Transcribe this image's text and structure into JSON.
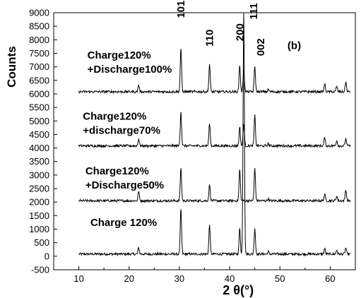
{
  "chart_data": {
    "type": "line",
    "xlabel": "2 θ(°)",
    "ylabel": "Counts",
    "xlim": [
      5,
      65
    ],
    "ylim": [
      -500,
      9000
    ],
    "xticks": [
      10,
      20,
      30,
      40,
      50,
      60
    ],
    "yticks": [
      -500,
      0,
      500,
      1000,
      1500,
      2000,
      2500,
      3000,
      3500,
      4000,
      4500,
      5000,
      5500,
      6000,
      6500,
      7000,
      7500,
      8000,
      8500,
      9000
    ],
    "panel_label": "(b)",
    "peak_labels": [
      {
        "text": "101",
        "x": 30.3,
        "y": 8800
      },
      {
        "text": "110",
        "x": 36.0,
        "y": 7750
      },
      {
        "text": "200",
        "x": 42.0,
        "y": 7950
      },
      {
        "text": "111",
        "x": 44.8,
        "y": 8750
      },
      {
        "text": "002",
        "x": 46.2,
        "y": 7400
      }
    ],
    "series": [
      {
        "name": "Charge 120%",
        "label_lines": [
          "Charge 120%"
        ],
        "label_x": 12.3,
        "label_y": 1120,
        "baseline": 80,
        "peaks": [
          {
            "x": 21.9,
            "h": 230
          },
          {
            "x": 30.3,
            "h": 1650
          },
          {
            "x": 36.0,
            "h": 1080
          },
          {
            "x": 42.0,
            "h": 930
          },
          {
            "x": 42.8,
            "h": 8900
          },
          {
            "x": 45.0,
            "h": 950
          },
          {
            "x": 47.7,
            "h": 90
          },
          {
            "x": 58.9,
            "h": 200
          },
          {
            "x": 61.3,
            "h": 150
          },
          {
            "x": 63.1,
            "h": 230
          }
        ]
      },
      {
        "name": "Charge120% +Discharge50%",
        "label_lines": [
          "Charge120%",
          "+Discharge50%"
        ],
        "label_x": 11.3,
        "label_y": 3020,
        "baseline": 2050,
        "peaks": [
          {
            "x": 21.9,
            "h": 350
          },
          {
            "x": 30.3,
            "h": 1200
          },
          {
            "x": 36.0,
            "h": 600
          },
          {
            "x": 42.0,
            "h": 1150
          },
          {
            "x": 45.0,
            "h": 1200
          },
          {
            "x": 47.7,
            "h": 80
          },
          {
            "x": 58.9,
            "h": 230
          },
          {
            "x": 61.3,
            "h": 170
          },
          {
            "x": 63.1,
            "h": 400
          }
        ]
      },
      {
        "name": "Charge120% +discharge70%",
        "label_lines": [
          "Charge120%",
          "+discharge70%"
        ],
        "label_x": 10.8,
        "label_y": 5050,
        "baseline": 4080,
        "peaks": [
          {
            "x": 21.9,
            "h": 250
          },
          {
            "x": 30.3,
            "h": 1250
          },
          {
            "x": 36.0,
            "h": 820
          },
          {
            "x": 42.0,
            "h": 680
          },
          {
            "x": 42.8,
            "h": 800
          },
          {
            "x": 45.0,
            "h": 1120
          },
          {
            "x": 47.7,
            "h": 80
          },
          {
            "x": 58.9,
            "h": 300
          },
          {
            "x": 61.3,
            "h": 200
          },
          {
            "x": 63.1,
            "h": 270
          }
        ]
      },
      {
        "name": "Charge120% +Discharge100%",
        "label_lines": [
          "Charge120%",
          "+Discharge100%"
        ],
        "label_x": 11.7,
        "label_y": 7300,
        "baseline": 6080,
        "peaks": [
          {
            "x": 21.9,
            "h": 250
          },
          {
            "x": 30.3,
            "h": 1580
          },
          {
            "x": 36.0,
            "h": 1020
          },
          {
            "x": 42.0,
            "h": 960
          },
          {
            "x": 42.8,
            "h": 820
          },
          {
            "x": 45.0,
            "h": 920
          },
          {
            "x": 47.7,
            "h": 80
          },
          {
            "x": 58.9,
            "h": 280
          },
          {
            "x": 61.3,
            "h": 200
          },
          {
            "x": 63.1,
            "h": 370
          }
        ]
      }
    ]
  }
}
